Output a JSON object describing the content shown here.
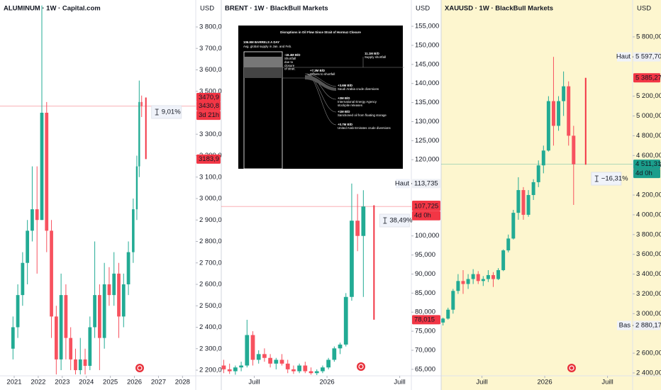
{
  "chart_data": [
    {
      "type": "candlestick",
      "title": "ALUMINUM · 1W · Capital.com",
      "currency": "USD",
      "background": "#ffffff",
      "up_color": "#22ab94",
      "down_color": "#f7525f",
      "x": [
        2020.95,
        2021.15,
        2021.35,
        2021.55,
        2021.75,
        2021.95,
        2022.15,
        2022.35,
        2022.55,
        2022.75,
        2022.95,
        2023.15,
        2023.35,
        2023.55,
        2023.75,
        2023.95,
        2024.15,
        2024.35,
        2024.55,
        2024.75,
        2024.95,
        2025.15,
        2025.35,
        2025.55,
        2025.75,
        2025.95,
        2026.1,
        2026.2,
        2026.3
      ],
      "open": [
        2300,
        2400,
        2550,
        2700,
        2850,
        2950,
        2900,
        3400,
        2850,
        2450,
        2250,
        2550,
        2350,
        2250,
        2200,
        2250,
        2220,
        2400,
        2550,
        2350,
        2600,
        2550,
        2650,
        2450,
        2600,
        2750,
        2950,
        3150,
        3450
      ],
      "high": [
        2450,
        2600,
        2750,
        2900,
        3150,
        3150,
        3900,
        3450,
        2900,
        2500,
        2650,
        2600,
        2400,
        2300,
        2350,
        2300,
        2450,
        2800,
        2600,
        2700,
        2680,
        2750,
        2700,
        2650,
        2800,
        3000,
        3200,
        3550,
        3480
      ],
      "low": [
        2250,
        2350,
        2500,
        2600,
        2800,
        2650,
        2900,
        2750,
        2350,
        2180,
        2200,
        2250,
        2200,
        2180,
        2180,
        2180,
        2200,
        2350,
        2200,
        2300,
        2500,
        2500,
        2350,
        2400,
        2550,
        2700,
        2900,
        3100,
        3380
      ],
      "close": [
        2400,
        2550,
        2700,
        2850,
        2950,
        2900,
        3400,
        2850,
        2450,
        2250,
        2550,
        2350,
        2250,
        2200,
        2250,
        2220,
        2400,
        2550,
        2350,
        2600,
        2550,
        2650,
        2450,
        2600,
        2750,
        2950,
        3150,
        3450,
        3430.8
      ],
      "xlim": [
        2020.41,
        2028.55
      ],
      "ylim": [
        2173.5,
        3925.6
      ],
      "xticks": [
        2021,
        2022,
        2023,
        2024,
        2025,
        2026,
        2027,
        2028
      ],
      "yticks": [
        {
          "value": 3800,
          "label": "3 800,0"
        },
        {
          "value": 3700,
          "label": "3 700,0"
        },
        {
          "value": 3600,
          "label": "3 600,0"
        },
        {
          "value": 3500,
          "label": "3 500,0"
        },
        {
          "value": 3300,
          "label": "3 300,0"
        },
        {
          "value": 3200,
          "label": "3 200,0"
        },
        {
          "value": 3100,
          "label": "3 100,0"
        },
        {
          "value": 3000,
          "label": "3 000,0"
        },
        {
          "value": 2900,
          "label": "2 900,0"
        },
        {
          "value": 2800,
          "label": "2 800,0"
        },
        {
          "value": 2700,
          "label": "2 700,0"
        },
        {
          "value": 2600,
          "label": "2 600,0"
        },
        {
          "value": 2500,
          "label": "2 500,0"
        },
        {
          "value": 2400,
          "label": "2 400,0"
        },
        {
          "value": 2300,
          "label": "2 300,0"
        },
        {
          "value": 2200,
          "label": "2 200,0"
        }
      ],
      "last": {
        "value": 3430.8,
        "label": "3430,8",
        "countdown": "3d 21h",
        "color": "#f23645"
      },
      "measure": {
        "start": {
          "value": 3470.9,
          "label": "3470,9"
        },
        "end": {
          "value": 3183.9,
          "label": "3183,9"
        },
        "change": "9,01%",
        "color": "#f23645"
      }
    },
    {
      "type": "candlestick",
      "title": "BRENT · 1W · BlackBull Markets",
      "currency": "USD",
      "background": "#ffffff",
      "up_color": "#22ab94",
      "down_color": "#f7525f",
      "x": [
        2025.29,
        2025.33,
        2025.37,
        2025.41,
        2025.45,
        2025.49,
        2025.53,
        2025.57,
        2025.61,
        2025.65,
        2025.69,
        2025.73,
        2025.77,
        2025.81,
        2025.85,
        2025.89,
        2025.93,
        2025.97,
        2026.01,
        2026.05,
        2026.09,
        2026.13,
        2026.17,
        2026.21,
        2026.25
      ],
      "open": [
        66,
        65,
        64.5,
        65.5,
        66,
        74,
        67.5,
        69,
        68,
        66.5,
        67.5,
        66.5,
        65,
        64.5,
        66,
        64.5,
        64,
        64.5,
        65.5,
        67.5,
        70.5,
        71.5,
        84,
        104,
        100
      ],
      "high": [
        67.5,
        66.5,
        66,
        67,
        78,
        75,
        70,
        70.5,
        69,
        68,
        69,
        67.5,
        66,
        66.5,
        67,
        65.5,
        65,
        66,
        68,
        71,
        72,
        85,
        113.735,
        111,
        112
      ],
      "low": [
        64,
        63.8,
        63.6,
        64.5,
        65.5,
        66,
        66.5,
        67,
        65.5,
        65,
        66,
        64,
        63.8,
        64,
        64,
        63.6,
        63.5,
        64,
        65,
        67,
        69,
        71,
        83,
        96,
        84
      ],
      "close": [
        65,
        64.5,
        65.5,
        66,
        74,
        67.5,
        69,
        68,
        66.5,
        67.5,
        66.5,
        65,
        64.5,
        66,
        64.5,
        64,
        64.5,
        65.5,
        67.5,
        70.5,
        71.5,
        84,
        104,
        100,
        107.725
      ],
      "xlim": [
        2025.273,
        2026.58
      ],
      "ylim": [
        63.3,
        161.9
      ],
      "xticks": [
        {
          "value": 2025.5,
          "label": "Juill"
        },
        2026,
        {
          "value": 2026.5,
          "label": "Juill"
        }
      ],
      "yticks": [
        {
          "value": 155,
          "label": "155,000"
        },
        {
          "value": 150,
          "label": "150,000"
        },
        {
          "value": 145,
          "label": "145,000"
        },
        {
          "value": 140,
          "label": "140,000"
        },
        {
          "value": 135,
          "label": "135,000"
        },
        {
          "value": 130,
          "label": "130,000"
        },
        {
          "value": 125,
          "label": "125,000"
        },
        {
          "value": 120,
          "label": "120,000"
        },
        {
          "value": 100,
          "label": "100,000"
        },
        {
          "value": 95,
          "label": "95,000"
        },
        {
          "value": 90,
          "label": "90,000"
        },
        {
          "value": 85,
          "label": "85,000"
        },
        {
          "value": 80,
          "label": "80,000"
        },
        {
          "value": 75,
          "label": "75,000"
        },
        {
          "value": 70,
          "label": "70,000"
        },
        {
          "value": 65,
          "label": "65,000"
        }
      ],
      "extremes": [
        {
          "text": "Haut",
          "value": 113.735,
          "label": "113,735"
        }
      ],
      "last": {
        "value": 107.725,
        "label": "107,725",
        "countdown": "4d 0h",
        "color": "#f23645"
      },
      "measure": {
        "start": {
          "value": 108.042,
          "label": "108,042"
        },
        "end": {
          "value": 78.015,
          "label": "78,015"
        },
        "change": "38,49%",
        "color": "#f23645"
      }
    },
    {
      "type": "candlestick",
      "title": "XAUUSD · 1W · BlackBull Markets",
      "currency": "USD",
      "background": "#fdf6cf",
      "up_color": "#22ab94",
      "down_color": "#f7525f",
      "x": [
        2025.19,
        2025.23,
        2025.27,
        2025.31,
        2025.35,
        2025.39,
        2025.43,
        2025.47,
        2025.51,
        2025.55,
        2025.59,
        2025.63,
        2025.67,
        2025.71,
        2025.75,
        2025.79,
        2025.83,
        2025.87,
        2025.91,
        2025.95,
        2025.99,
        2026.03,
        2026.07,
        2026.11,
        2026.15,
        2026.19,
        2026.23
      ],
      "open": [
        2910,
        2950,
        3040,
        3230,
        3330,
        3300,
        3350,
        3400,
        3330,
        3350,
        3390,
        3350,
        3440,
        3640,
        3760,
        4020,
        4250,
        4000,
        4200,
        4330,
        4500,
        4650,
        5150,
        4900,
        5150,
        5300,
        4800
      ],
      "high": [
        2960,
        3060,
        3250,
        3400,
        3440,
        3400,
        3450,
        3430,
        3380,
        3440,
        3420,
        3460,
        3650,
        3800,
        4050,
        4380,
        4280,
        4250,
        4360,
        4550,
        4700,
        5200,
        5597.7,
        5200,
        5450,
        5350,
        4900
      ],
      "low": [
        2880.17,
        2940,
        3000,
        3200,
        3200,
        3250,
        3300,
        3300,
        3280,
        3320,
        3270,
        3340,
        3430,
        3620,
        3750,
        3950,
        3950,
        3980,
        4150,
        4280,
        4420,
        4640,
        4700,
        4850,
        5000,
        4700,
        4100
      ],
      "close": [
        2950,
        3040,
        3230,
        3330,
        3300,
        3350,
        3400,
        3330,
        3350,
        3390,
        3350,
        3440,
        3640,
        3760,
        4020,
        4250,
        4000,
        4200,
        4330,
        4500,
        4650,
        5150,
        4900,
        5150,
        5300,
        4800,
        4511.31
      ],
      "xlim": [
        2025.175,
        2026.7
      ],
      "ylim": [
        2371,
        6173
      ],
      "xticks": [
        {
          "value": 2025.5,
          "label": "Juill"
        },
        2026,
        {
          "value": 2026.5,
          "label": "Juill"
        }
      ],
      "yticks": [
        {
          "value": 5800,
          "label": "5 800,00"
        },
        {
          "value": 5200,
          "label": "5 200,00"
        },
        {
          "value": 5000,
          "label": "5 000,00"
        },
        {
          "value": 4800,
          "label": "4 800,00"
        },
        {
          "value": 4600,
          "label": "4 600,00"
        },
        {
          "value": 4200,
          "label": "4 200,00"
        },
        {
          "value": 4000,
          "label": "4 000,00"
        },
        {
          "value": 3800,
          "label": "3 800,00"
        },
        {
          "value": 3600,
          "label": "3 600,00"
        },
        {
          "value": 3400,
          "label": "3 400,00"
        },
        {
          "value": 3200,
          "label": "3 200,00"
        },
        {
          "value": 3000,
          "label": "3 000,00"
        },
        {
          "value": 2600,
          "label": "2 600,00"
        },
        {
          "value": 2400,
          "label": "2 400,00"
        }
      ],
      "extremes": [
        {
          "text": "Haut",
          "value": 5597.7,
          "label": "5 597,70"
        },
        {
          "text": "Bas",
          "value": 2880.17,
          "label": "2 880,17"
        }
      ],
      "last": {
        "value": 4511.31,
        "label": "4 511,31",
        "countdown": "4d 0h",
        "color": "#1b9e8c"
      },
      "measure": {
        "start": {
          "value": 5385.27,
          "label": "5 385,27"
        },
        "end": {
          "value": 4506.96,
          "label": "4 506,96"
        },
        "change": "−16,31%",
        "color": "#f23645"
      }
    }
  ],
  "inset": {
    "title": "Disruptions in Oil Flow Since Strait of Hormuz Closure",
    "supply": "106.9M BARRELS A DAY",
    "supply_note": "Avg. global supply in Jan. and Feb.",
    "items": [
      {
        "value": "-18.4M B/D",
        "lines": [
          "Shortfall",
          "due to",
          "closure",
          "of strait."
        ]
      },
      {
        "value": "11.1M B/D",
        "lines": [
          "Supply shortfall"
        ]
      },
      {
        "value": "+7.3M B/D",
        "lines": [
          "Offsets to shortfall"
        ]
      },
      {
        "value": "+3.6M B/D",
        "lines": [
          "Saudi Arabia crude diversions"
        ]
      },
      {
        "value": "+2M B/D",
        "lines": [
          "International Energy Agency",
          "stockpile releases"
        ]
      },
      {
        "value": "+1M B/D",
        "lines": [
          "Sanctioned oil from floating storage"
        ]
      },
      {
        "value": "+0.7M B/D",
        "lines": [
          "United Arab Emirates crude diversions"
        ]
      }
    ]
  }
}
